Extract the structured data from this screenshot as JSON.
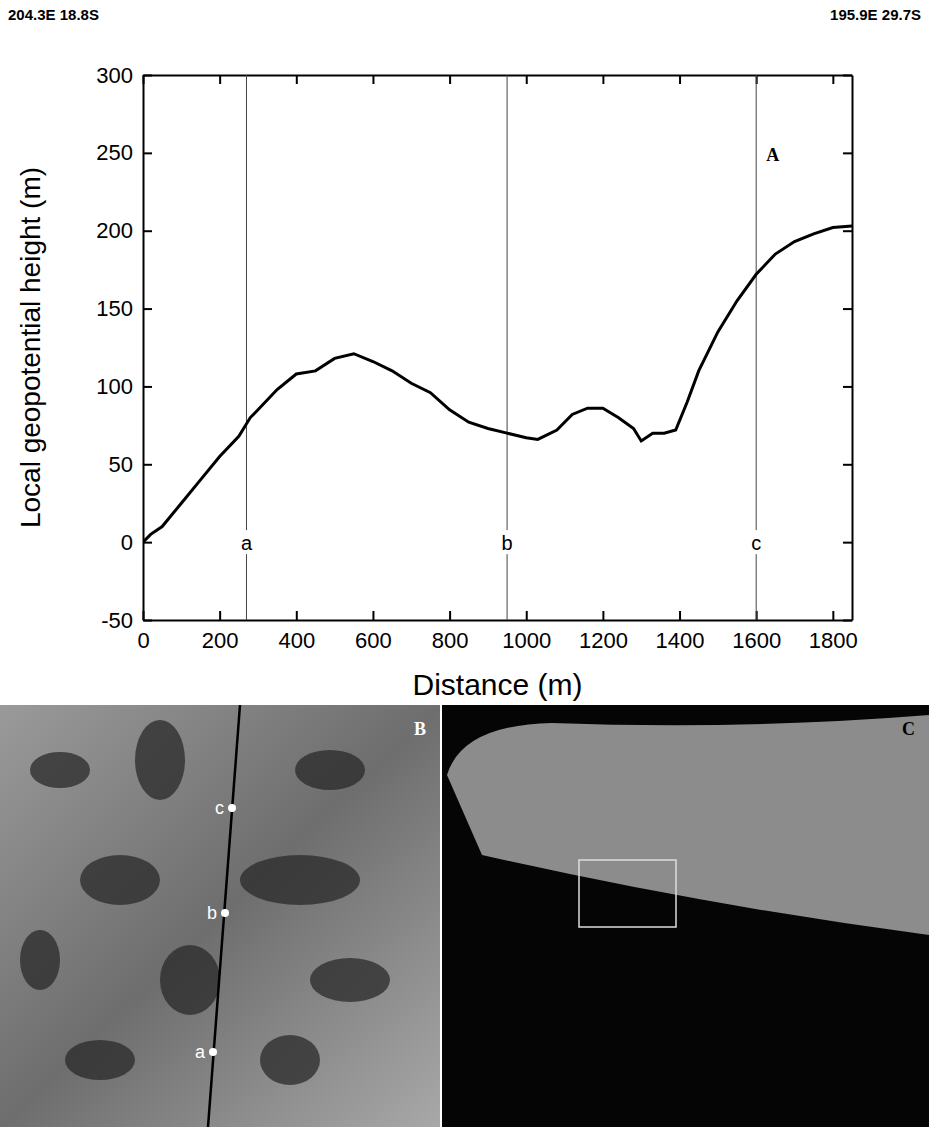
{
  "chart_data": {
    "type": "line",
    "panel": "A",
    "corner_labels": {
      "left": "204.3E 18.8S",
      "right": "195.9E 29.7S"
    },
    "x_label": "Distance (m)",
    "y_label": "Local geopotential height (m)",
    "color": "#000000",
    "x": [
      0,
      20,
      50,
      100,
      150,
      200,
      250,
      280,
      300,
      350,
      400,
      450,
      500,
      550,
      600,
      650,
      700,
      750,
      800,
      850,
      900,
      950,
      1000,
      1030,
      1080,
      1120,
      1160,
      1200,
      1240,
      1280,
      1300,
      1330,
      1360,
      1390,
      1420,
      1450,
      1500,
      1550,
      1600,
      1650,
      1700,
      1750,
      1800,
      1850
    ],
    "values": [
      0,
      5,
      10,
      25,
      40,
      55,
      68,
      80,
      85,
      98,
      108,
      110,
      118,
      121,
      116,
      110,
      102,
      96,
      85,
      77,
      73,
      70,
      67,
      66,
      72,
      82,
      86,
      86,
      80,
      73,
      65,
      70,
      70,
      72,
      90,
      110,
      135,
      155,
      172,
      185,
      193,
      198,
      202,
      203
    ],
    "xlim": [
      0,
      1850
    ],
    "ylim": [
      -50,
      300
    ],
    "xticks": [
      0,
      200,
      400,
      600,
      800,
      1000,
      1200,
      1400,
      1600,
      1800
    ],
    "yticks": [
      -50,
      0,
      50,
      100,
      150,
      200,
      250,
      300
    ],
    "markers": [
      {
        "x": 270,
        "label": "a"
      },
      {
        "x": 950,
        "label": "b"
      },
      {
        "x": 1600,
        "label": "c"
      }
    ]
  },
  "panels": [
    {
      "label": "B",
      "points": [
        "a",
        "b",
        "c"
      ]
    },
    {
      "label": "C"
    }
  ]
}
